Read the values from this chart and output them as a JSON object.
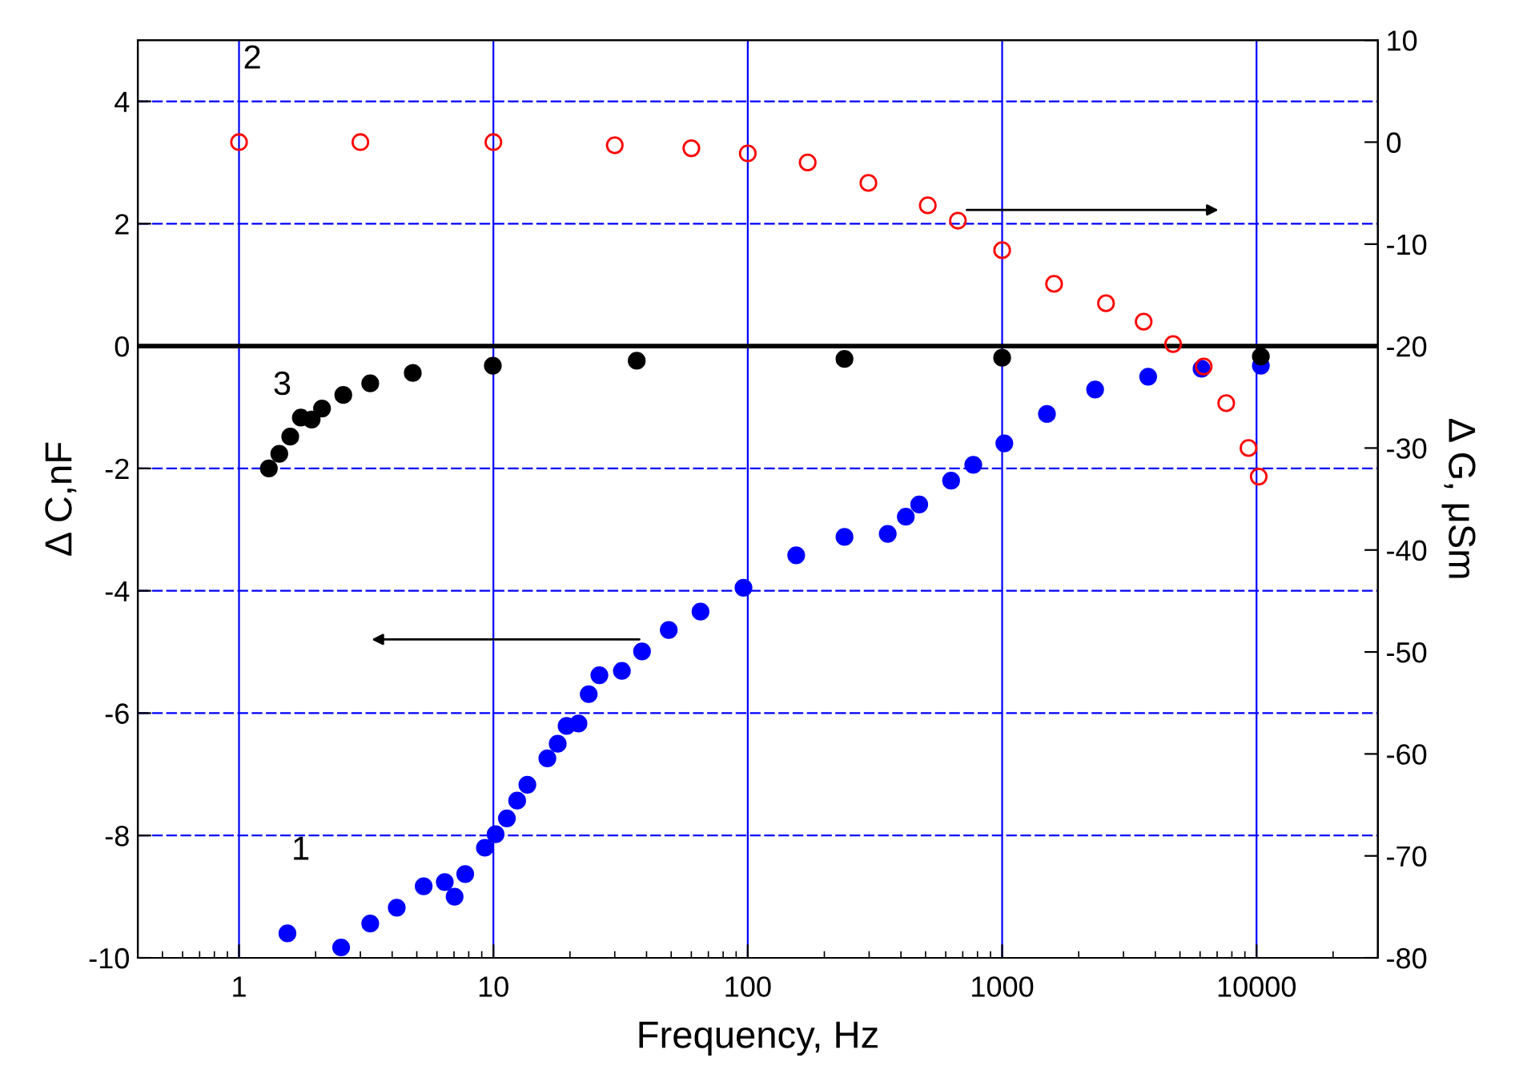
{
  "chart_data": {
    "type": "scatter",
    "xlabel": "Frequency, Hz",
    "ylabel": "Δ C,nF",
    "y2label": "Δ G, μSm",
    "log": "x",
    "xlim": [
      0.4,
      30000
    ],
    "xticks": [
      1,
      10,
      100,
      1000,
      10000
    ],
    "ylim": [
      -10,
      5
    ],
    "yticks": [
      -10,
      -8,
      -6,
      -4,
      -2,
      0,
      2,
      4
    ],
    "y2lim": [
      -80,
      10
    ],
    "y2ticks": [
      -80,
      -70,
      -60,
      -50,
      -40,
      -30,
      -20,
      -10,
      0,
      10
    ],
    "grid": true,
    "marker": "circle",
    "ref_lines": [
      {
        "axis": "y",
        "value": 0,
        "label": null,
        "color": "#000000"
      }
    ],
    "annotations": [
      "1",
      "2",
      "3"
    ],
    "series": [
      {
        "color": "#0000ff",
        "x": [
          1.55,
          2.52,
          3.28,
          4.17,
          5.32,
          6.44,
          7.04,
          7.75,
          9.26,
          10.2,
          11.3,
          12.4,
          13.6,
          16.3,
          17.9,
          19.4,
          21.6,
          23.7,
          26.1,
          32.0,
          38.4,
          48.9,
          65.2,
          96.2,
          155,
          240,
          355,
          418,
          472,
          630,
          770,
          1020,
          1500,
          2320,
          3750,
          6080,
          10400
        ],
        "values": [
          -9.6,
          -9.83,
          -9.44,
          -9.18,
          -8.83,
          -8.76,
          -9.0,
          -8.63,
          -8.2,
          -7.98,
          -7.72,
          -7.43,
          -7.17,
          -6.74,
          -6.5,
          -6.21,
          -6.17,
          -5.69,
          -5.38,
          -5.31,
          -4.99,
          -4.64,
          -4.34,
          -3.95,
          -3.42,
          -3.12,
          -3.07,
          -2.79,
          -2.59,
          -2.2,
          -1.94,
          -1.59,
          -1.11,
          -0.71,
          -0.5,
          -0.37,
          -0.32
        ]
      },
      {
        "color": "#ff0000",
        "axis": "y2",
        "x": [
          1.0,
          3.0,
          10.0,
          30,
          60,
          100,
          172,
          298,
          510,
          670,
          1000,
          1600,
          2560,
          3600,
          4700,
          6200,
          7600,
          9300,
          10200
        ],
        "values": [
          0,
          0,
          0,
          -0.3,
          -0.6,
          -1.1,
          -2.0,
          -4.0,
          -6.2,
          -7.7,
          -10.6,
          -13.9,
          -15.8,
          -17.6,
          -19.8,
          -22.0,
          -25.6,
          -30.0,
          -32.8
        ]
      },
      {
        "color": "#000000",
        "x": [
          1.31,
          1.44,
          1.59,
          1.75,
          1.93,
          2.12,
          2.57,
          3.28,
          4.82,
          9.95,
          36.6,
          240,
          1000,
          10400
        ],
        "values": [
          -2.0,
          -1.76,
          -1.48,
          -1.17,
          -1.2,
          -1.02,
          -0.8,
          -0.61,
          -0.44,
          -0.32,
          -0.24,
          -0.21,
          -0.19,
          -0.17
        ]
      }
    ]
  }
}
